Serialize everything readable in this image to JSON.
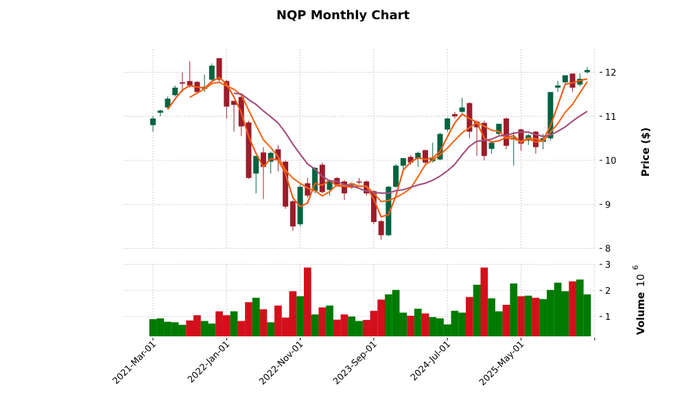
{
  "chart_data": {
    "type": "candlestick",
    "title": "NQP Monthly Chart",
    "ylabel": "Price ($)",
    "volume_label": "Volume",
    "volume_exponent_base": "10",
    "volume_exponent": "6",
    "price_ticks": [
      "8",
      "9",
      "10",
      "11",
      "12"
    ],
    "price_ylim": [
      7.98,
      12.52
    ],
    "volume_ticks": [
      "1",
      "2",
      "3"
    ],
    "volume_ylim": [
      0.24,
      3.0
    ],
    "x_ticks": [
      {
        "index": 0,
        "label": "2021-Mar-01"
      },
      {
        "index": 10,
        "label": "2022-Jan-01"
      },
      {
        "index": 20,
        "label": "2022-Nov-01"
      },
      {
        "index": 30,
        "label": "2023-Sep-01"
      },
      {
        "index": 40,
        "label": "2024-Jul-01"
      },
      {
        "index": 50,
        "label": "2025-May-01"
      },
      {
        "index": 60,
        "label": ""
      }
    ],
    "moving_averages": [
      {
        "period": 3,
        "color": "#f05a14"
      },
      {
        "period": 6,
        "color": "#f26a1b"
      },
      {
        "period": 12,
        "color": "#a34f7e"
      }
    ],
    "colors": {
      "up": "#006340",
      "down": "#9c1c2b",
      "vol_up": "#007a00",
      "vol_down": "#d2101c"
    },
    "ohlc": [
      [
        10.8,
        11.0,
        10.65,
        10.95
      ],
      [
        11.08,
        11.15,
        11.0,
        11.13
      ],
      [
        11.2,
        11.45,
        11.15,
        11.4
      ],
      [
        11.48,
        11.7,
        11.45,
        11.65
      ],
      [
        11.77,
        12.0,
        11.55,
        11.74
      ],
      [
        11.8,
        12.25,
        11.65,
        11.7
      ],
      [
        11.78,
        11.8,
        11.5,
        11.55
      ],
      [
        11.62,
        11.95,
        11.55,
        11.67
      ],
      [
        11.83,
        12.2,
        11.8,
        12.15
      ],
      [
        12.32,
        12.32,
        11.75,
        11.83
      ],
      [
        11.8,
        11.83,
        10.95,
        11.22
      ],
      [
        11.35,
        11.35,
        10.65,
        11.26
      ],
      [
        11.44,
        11.5,
        10.55,
        10.77
      ],
      [
        10.86,
        10.9,
        9.58,
        9.6
      ],
      [
        9.7,
        10.1,
        9.25,
        10.1
      ],
      [
        10.18,
        10.3,
        9.12,
        9.85
      ],
      [
        9.97,
        10.2,
        9.7,
        10.17
      ],
      [
        10.25,
        10.35,
        9.75,
        10.0
      ],
      [
        9.97,
        10.0,
        8.9,
        8.95
      ],
      [
        9.07,
        9.1,
        8.4,
        8.5
      ],
      [
        8.55,
        9.45,
        8.5,
        9.4
      ],
      [
        9.48,
        9.6,
        9.15,
        9.2
      ],
      [
        9.3,
        9.85,
        9.25,
        9.83
      ],
      [
        9.9,
        9.95,
        9.25,
        9.28
      ],
      [
        9.33,
        9.55,
        9.2,
        9.53
      ],
      [
        9.6,
        9.62,
        9.4,
        9.45
      ],
      [
        9.52,
        9.55,
        9.1,
        9.25
      ],
      [
        9.43,
        9.5,
        9.35,
        9.48
      ],
      [
        9.52,
        9.6,
        9.45,
        9.5
      ],
      [
        9.52,
        9.55,
        9.2,
        9.25
      ],
      [
        9.3,
        9.32,
        8.55,
        8.6
      ],
      [
        8.62,
        8.65,
        8.2,
        8.3
      ],
      [
        8.3,
        9.42,
        8.28,
        9.4
      ],
      [
        9.4,
        9.92,
        9.38,
        9.88
      ],
      [
        9.88,
        10.05,
        9.8,
        10.05
      ],
      [
        10.08,
        10.12,
        9.9,
        9.95
      ],
      [
        10.05,
        10.2,
        9.85,
        10.17
      ],
      [
        10.23,
        10.25,
        9.92,
        9.95
      ],
      [
        9.98,
        10.4,
        9.95,
        10.05
      ],
      [
        10.02,
        10.62,
        10.0,
        10.6
      ],
      [
        10.7,
        10.97,
        10.65,
        10.95
      ],
      [
        11.05,
        11.1,
        10.95,
        11.0
      ],
      [
        11.1,
        11.42,
        11.08,
        11.2
      ],
      [
        11.3,
        11.32,
        10.5,
        10.65
      ],
      [
        10.88,
        10.9,
        10.1,
        10.75
      ],
      [
        10.85,
        10.9,
        10.0,
        10.1
      ],
      [
        10.26,
        10.42,
        10.15,
        10.4
      ],
      [
        10.6,
        10.83,
        10.55,
        10.83
      ],
      [
        10.95,
        10.97,
        10.25,
        10.33
      ],
      [
        10.47,
        10.65,
        9.88,
        10.52
      ],
      [
        10.7,
        10.72,
        10.22,
        10.38
      ],
      [
        10.45,
        10.6,
        10.35,
        10.57
      ],
      [
        10.65,
        10.67,
        10.15,
        10.3
      ],
      [
        10.42,
        10.6,
        10.25,
        10.5
      ],
      [
        10.5,
        11.55,
        10.45,
        11.55
      ],
      [
        11.65,
        11.8,
        11.55,
        11.7
      ],
      [
        11.77,
        11.93,
        11.75,
        11.93
      ],
      [
        11.97,
        11.97,
        11.55,
        11.65
      ],
      [
        11.72,
        11.97,
        11.68,
        11.85
      ],
      [
        12.0,
        12.12,
        11.97,
        12.05
      ]
    ],
    "volume": [
      0.9,
      0.93,
      0.8,
      0.78,
      0.68,
      0.85,
      1.05,
      0.83,
      0.73,
      1.2,
      1.05,
      1.2,
      0.83,
      1.55,
      1.72,
      1.28,
      0.78,
      1.42,
      0.96,
      1.97,
      1.78,
      2.88,
      1.08,
      1.35,
      1.42,
      0.88,
      1.08,
      1.0,
      0.83,
      0.87,
      1.22,
      1.65,
      1.85,
      2.02,
      1.15,
      1.03,
      1.3,
      1.12,
      0.98,
      0.93,
      0.7,
      1.22,
      1.15,
      1.75,
      2.22,
      2.88,
      1.7,
      1.2,
      1.45,
      2.27,
      1.78,
      1.8,
      1.72,
      1.67,
      2.02,
      2.3,
      1.97,
      2.35,
      2.42,
      1.85
    ]
  }
}
